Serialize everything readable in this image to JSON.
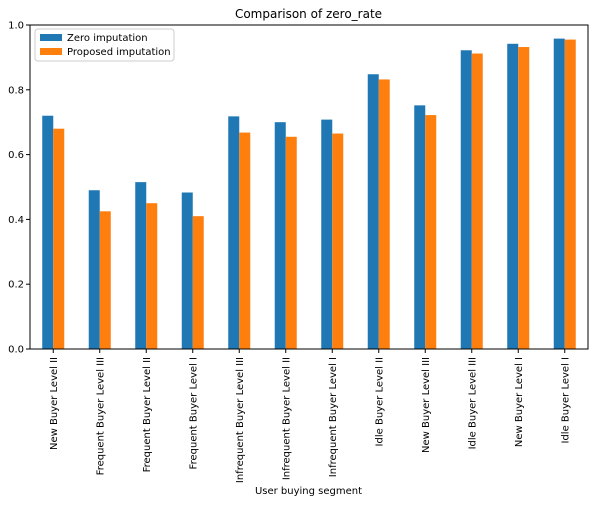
{
  "chart_data": {
    "type": "bar",
    "title": "Comparison of zero_rate",
    "xlabel": "User buying segment",
    "ylabel": "",
    "ylim": [
      0,
      1.0
    ],
    "yticks": [
      "0.0",
      "0.2",
      "0.4",
      "0.6",
      "0.8",
      "1.0"
    ],
    "grid": false,
    "legend_position": "top-left",
    "categories": [
      "New Buyer Level II",
      "Frequent Buyer Level III",
      "Frequent Buyer Level II",
      "Frequent Buyer Level I",
      "Infrequent Buyer Level III",
      "Infrequent Buyer Level II",
      "Infrequent Buyer Level I",
      "Idle Buyer Level II",
      "New Buyer Level III",
      "Idle Buyer Level III",
      "New Buyer Level I",
      "Idle Buyer Level I"
    ],
    "series": [
      {
        "name": "Zero imputation",
        "color": "#1f77b4",
        "values": [
          0.72,
          0.49,
          0.515,
          0.483,
          0.718,
          0.7,
          0.708,
          0.848,
          0.752,
          0.922,
          0.942,
          0.958
        ]
      },
      {
        "name": "Proposed imputation",
        "color": "#ff7f0e",
        "values": [
          0.68,
          0.425,
          0.45,
          0.41,
          0.668,
          0.655,
          0.665,
          0.832,
          0.722,
          0.912,
          0.932,
          0.955
        ]
      }
    ]
  }
}
